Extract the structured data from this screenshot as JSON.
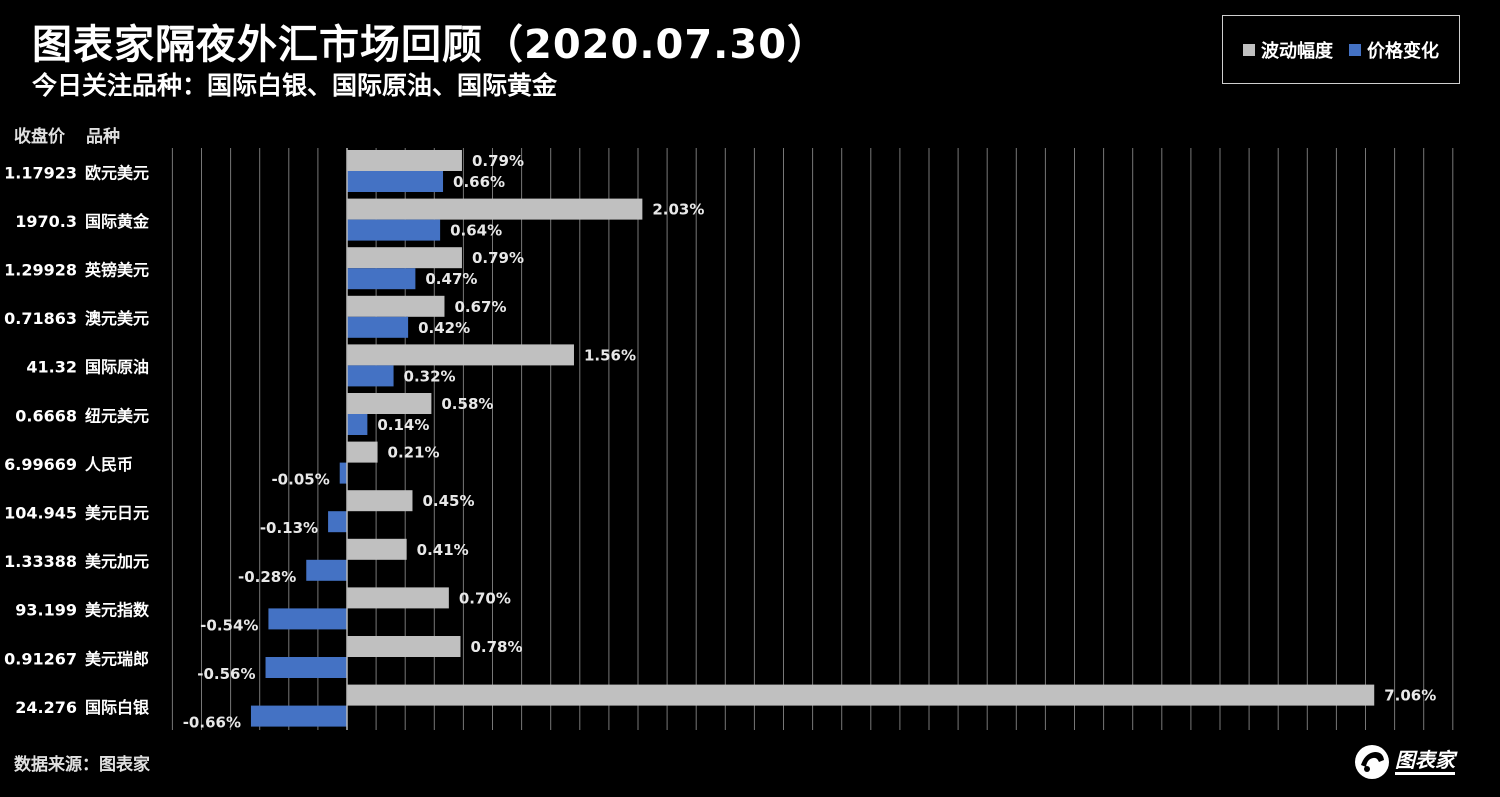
{
  "title": "图表家隔夜外汇市场回顾（2020.07.30）",
  "subtitle": "今日关注品种：国际白银、国际原油、国际黄金",
  "legend": {
    "volatility_label": "波动幅度",
    "change_label": "价格变化"
  },
  "headers": {
    "price": "收盘价",
    "name": "品种"
  },
  "source": "数据来源：图表家",
  "logo": {
    "text": "图表家"
  },
  "colors": {
    "volatility": "#c0c0c0",
    "change": "#4472c4",
    "grid": "#777777"
  },
  "chart_data": {
    "type": "bar",
    "orientation": "horizontal",
    "categories": [
      "欧元美元",
      "国际黄金",
      "英镑美元",
      "澳元美元",
      "国际原油",
      "纽元美元",
      "人民币",
      "美元日元",
      "美元加元",
      "美元指数",
      "美元瑞郎",
      "国际白银"
    ],
    "close_prices": [
      "1.17923",
      "1970.3",
      "1.29928",
      "0.71863",
      "41.32",
      "0.6668",
      "6.99669",
      "104.945",
      "1.33388",
      "93.199",
      "0.91267",
      "24.276"
    ],
    "series": [
      {
        "name": "波动幅度",
        "values": [
          0.79,
          2.03,
          0.79,
          0.67,
          1.56,
          0.58,
          0.21,
          0.45,
          0.41,
          0.7,
          0.78,
          7.06
        ]
      },
      {
        "name": "价格变化",
        "values": [
          0.66,
          0.64,
          0.47,
          0.42,
          0.32,
          0.14,
          -0.05,
          -0.13,
          -0.28,
          -0.54,
          -0.56,
          -0.66
        ]
      }
    ],
    "value_labels": [
      [
        "0.79%",
        "2.03%",
        "0.79%",
        "0.67%",
        "1.56%",
        "0.58%",
        "0.21%",
        "0.45%",
        "0.41%",
        "0.70%",
        "0.78%",
        "7.06%"
      ],
      [
        "0.66%",
        "0.64%",
        "0.47%",
        "0.42%",
        "0.32%",
        "0.14%",
        "-0.05%",
        "-0.13%",
        "-0.28%",
        "-0.54%",
        "-0.56%",
        "-0.66%"
      ]
    ],
    "xlim": [
      -1.2,
      7.6
    ],
    "grid": true,
    "legend_position": "top-right"
  }
}
